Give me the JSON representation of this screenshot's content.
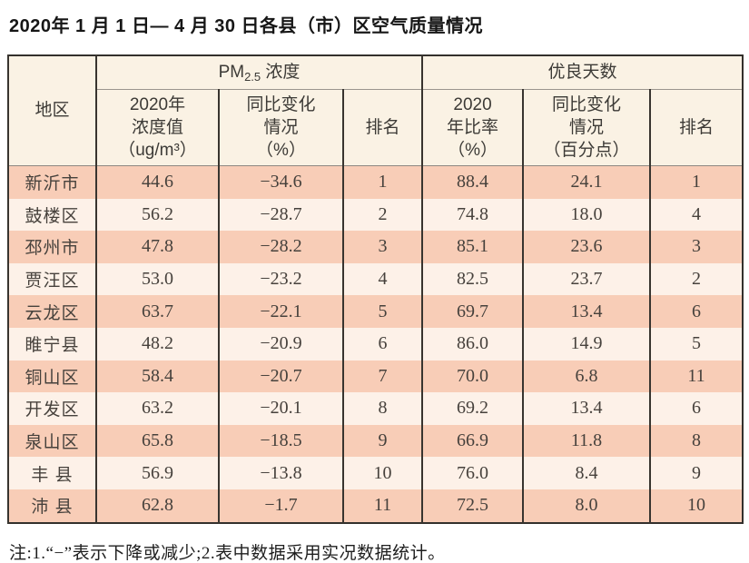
{
  "title": "2020年 1 月 1 日— 4 月 30 日各县（市）区空气质量情况",
  "table": {
    "header": {
      "region": "地区",
      "pm25": {
        "prefix": "PM",
        "sub": "2.5",
        "suffix": " 浓度"
      },
      "good_days": "优良天数"
    },
    "subheads": [
      [
        "2020年",
        "浓度值",
        "（ug/m³）"
      ],
      [
        "同比变化",
        "情况",
        "（%）"
      ],
      [
        "排名"
      ],
      [
        "2020",
        "年比率",
        "（%）"
      ],
      [
        "同比变化",
        "情况",
        "（百分点）"
      ],
      [
        "排名"
      ]
    ],
    "rows": [
      [
        "新沂市",
        "44.6",
        "−34.6",
        "1",
        "88.4",
        "24.1",
        "1"
      ],
      [
        "鼓楼区",
        "56.2",
        "−28.7",
        "2",
        "74.8",
        "18.0",
        "4"
      ],
      [
        "邳州市",
        "47.8",
        "−28.2",
        "3",
        "85.1",
        "23.6",
        "3"
      ],
      [
        "贾汪区",
        "53.0",
        "−23.2",
        "4",
        "82.5",
        "23.7",
        "2"
      ],
      [
        "云龙区",
        "63.7",
        "−22.1",
        "5",
        "69.7",
        "13.4",
        "6"
      ],
      [
        "睢宁县",
        "48.2",
        "−20.9",
        "6",
        "86.0",
        "14.9",
        "5"
      ],
      [
        "铜山区",
        "58.4",
        "−20.7",
        "7",
        "70.0",
        "6.8",
        "11"
      ],
      [
        "开发区",
        "63.2",
        "−20.1",
        "8",
        "69.2",
        "13.4",
        "6"
      ],
      [
        "泉山区",
        "65.8",
        "−18.5",
        "9",
        "66.9",
        "11.8",
        "8"
      ],
      [
        "丰 县",
        "56.9",
        "−13.8",
        "10",
        "76.0",
        "8.4",
        "9"
      ],
      [
        "沛 县",
        "62.8",
        "−1.7",
        "11",
        "72.5",
        "8.0",
        "10"
      ]
    ]
  },
  "note": "注:1.“−”表示下降或减少;2.表中数据采用实况数据统计。",
  "colors": {
    "row_dark": "#f8cdb7",
    "row_light": "#fdf1e8",
    "header_bg": "#faf2e4",
    "border_dark": "#33302c",
    "border_light": "#8d8781"
  }
}
